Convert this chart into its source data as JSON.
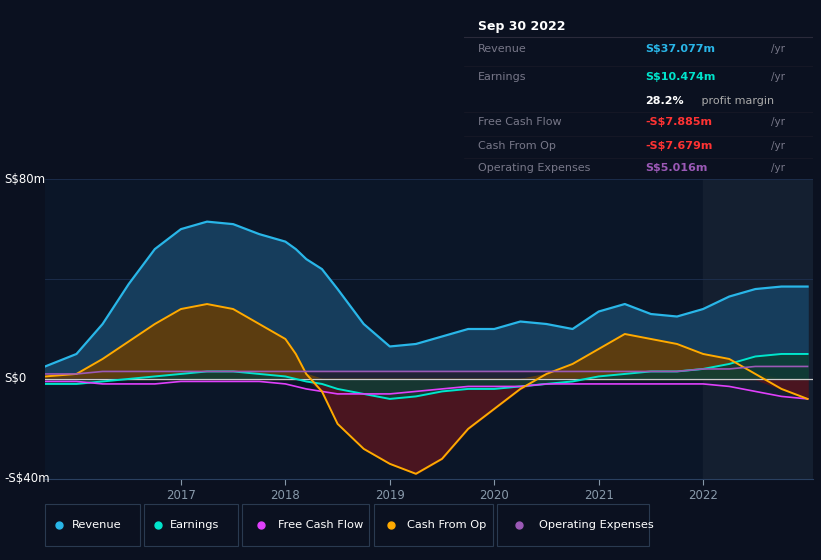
{
  "bg_color": "#0b1120",
  "plot_bg": "#0b1628",
  "highlight_bg": "#141f30",
  "years": [
    2015.7,
    2016.0,
    2016.25,
    2016.5,
    2016.75,
    2017.0,
    2017.25,
    2017.5,
    2017.75,
    2018.0,
    2018.1,
    2018.2,
    2018.35,
    2018.5,
    2018.75,
    2019.0,
    2019.25,
    2019.5,
    2019.75,
    2020.0,
    2020.25,
    2020.5,
    2020.75,
    2021.0,
    2021.25,
    2021.5,
    2021.75,
    2022.0,
    2022.25,
    2022.5,
    2022.75,
    2023.0
  ],
  "revenue": [
    5,
    10,
    22,
    38,
    52,
    60,
    63,
    62,
    58,
    55,
    52,
    48,
    44,
    36,
    22,
    13,
    14,
    17,
    20,
    20,
    23,
    22,
    20,
    27,
    30,
    26,
    25,
    28,
    33,
    36,
    37,
    37
  ],
  "earnings": [
    -2,
    -2,
    -1,
    0,
    1,
    2,
    3,
    3,
    2,
    1,
    0,
    -1,
    -2,
    -4,
    -6,
    -8,
    -7,
    -5,
    -4,
    -4,
    -3,
    -2,
    -1,
    1,
    2,
    3,
    3,
    4,
    6,
    9,
    10,
    10
  ],
  "free_cash_flow": [
    -1,
    -1,
    -2,
    -2,
    -2,
    -1,
    -1,
    -1,
    -1,
    -2,
    -3,
    -4,
    -5,
    -6,
    -6,
    -6,
    -5,
    -4,
    -3,
    -3,
    -3,
    -2,
    -2,
    -2,
    -2,
    -2,
    -2,
    -2,
    -3,
    -5,
    -7,
    -8
  ],
  "cash_from_op": [
    1,
    2,
    8,
    15,
    22,
    28,
    30,
    28,
    22,
    16,
    10,
    2,
    -5,
    -18,
    -28,
    -34,
    -38,
    -32,
    -20,
    -12,
    -4,
    2,
    6,
    12,
    18,
    16,
    14,
    10,
    8,
    2,
    -4,
    -8
  ],
  "operating_expenses": [
    2,
    2,
    3,
    3,
    3,
    3,
    3,
    3,
    3,
    3,
    3,
    3,
    3,
    3,
    3,
    3,
    3,
    3,
    3,
    3,
    3,
    3,
    3,
    3,
    3,
    3,
    3,
    4,
    4,
    5,
    5,
    5
  ],
  "revenue_color": "#29b6e8",
  "revenue_fill": "#163d5c",
  "earnings_color": "#00e5cc",
  "earnings_fill": "#0d3d35",
  "free_cash_flow_color": "#e040fb",
  "cash_from_op_color": "#ffaa00",
  "cash_from_op_fill_pos": "#5c3d10",
  "cash_from_op_fill_neg": "#4a1520",
  "operating_expenses_color": "#9b59b6",
  "opex_fill": "#1a1a2e",
  "zero_line_color": "#cccccc",
  "grid_color": "#1e3050",
  "ylim": [
    -40,
    80
  ],
  "highlight_start": 2022.0,
  "highlight_end": 2023.05,
  "xlim_start": 2015.7,
  "xlim_end": 2023.05,
  "xticks": [
    2017,
    2018,
    2019,
    2020,
    2021,
    2022
  ],
  "info_box": {
    "date": "Sep 30 2022",
    "revenue_val": "S$37.077m",
    "earnings_val": "S$10.474m",
    "margin": "28.2%",
    "fcf_val": "-S$7.885m",
    "cfop_val": "-S$7.679m",
    "opex_val": "S$5.016m"
  },
  "legend_items": [
    {
      "label": "Revenue",
      "color": "#29b6e8"
    },
    {
      "label": "Earnings",
      "color": "#00e5cc"
    },
    {
      "label": "Free Cash Flow",
      "color": "#e040fb"
    },
    {
      "label": "Cash From Op",
      "color": "#ffaa00"
    },
    {
      "label": "Operating Expenses",
      "color": "#9b59b6"
    }
  ]
}
